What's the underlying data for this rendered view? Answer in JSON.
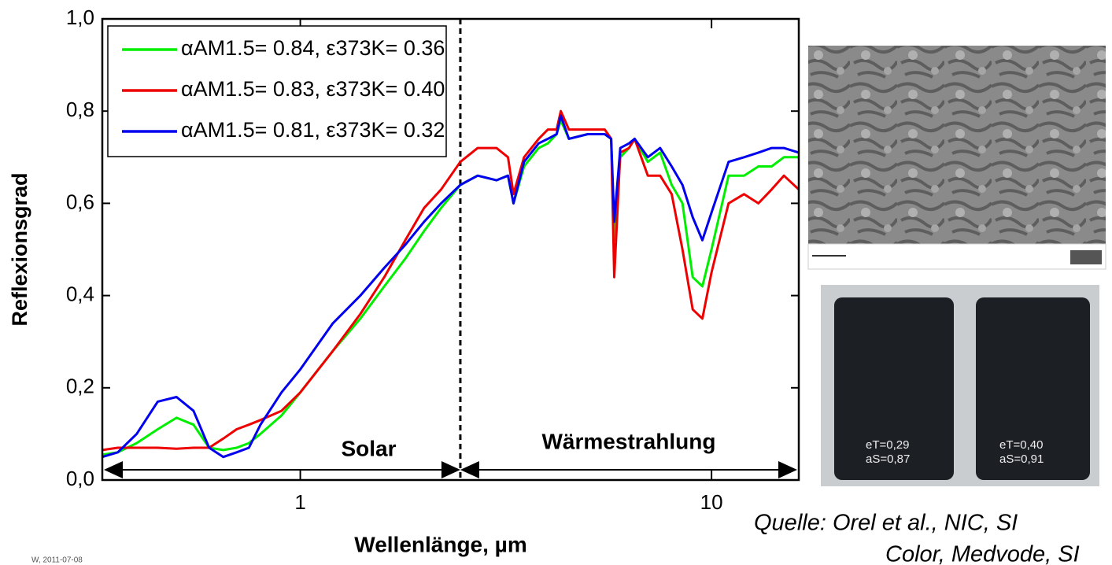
{
  "chart_data": {
    "type": "line",
    "x_label": "Wellenlänge, µm",
    "y_label": "Reflexionsgrad",
    "xscale": "log",
    "xlim": [
      0.33,
      16.3
    ],
    "xticks": [
      1,
      10
    ],
    "ylim": [
      0,
      1
    ],
    "yticks": [
      {
        "value": 0,
        "label": "0,0"
      },
      {
        "value": 0.2,
        "label": "0,2"
      },
      {
        "value": 0.4,
        "label": "0,4"
      },
      {
        "value": 0.6,
        "label": "0,6"
      },
      {
        "value": 0.8,
        "label": "0,8"
      },
      {
        "value": 1,
        "label": "1,0"
      }
    ],
    "legend": "upper left",
    "divider_x": 2.45,
    "regions": [
      "Solar",
      "Wärmestrahlung"
    ],
    "x": [
      0.33,
      0.36,
      0.4,
      0.45,
      0.5,
      0.55,
      0.6,
      0.65,
      0.7,
      0.75,
      0.8,
      0.9,
      1.0,
      1.2,
      1.4,
      1.6,
      1.8,
      2.0,
      2.2,
      2.45,
      2.7,
      3.0,
      3.2,
      3.3,
      3.5,
      3.8,
      4.0,
      4.2,
      4.3,
      4.5,
      5.0,
      5.5,
      5.7,
      5.8,
      6.0,
      6.3,
      6.5,
      7.0,
      7.5,
      8.0,
      8.5,
      9.0,
      9.5,
      10,
      11,
      12,
      13,
      14,
      15,
      16.3
    ],
    "series": [
      {
        "name": "αAM1.5= 0.84, ε373K= 0.36",
        "color": "#00ee00",
        "values": [
          0.055,
          0.06,
          0.08,
          0.11,
          0.135,
          0.12,
          0.07,
          0.065,
          0.07,
          0.08,
          0.1,
          0.14,
          0.19,
          0.28,
          0.35,
          0.42,
          0.48,
          0.54,
          0.59,
          0.64,
          0.66,
          0.65,
          0.66,
          0.6,
          0.68,
          0.72,
          0.73,
          0.75,
          0.78,
          0.74,
          0.75,
          0.75,
          0.74,
          0.52,
          0.7,
          0.72,
          0.74,
          0.69,
          0.71,
          0.64,
          0.6,
          0.44,
          0.42,
          0.5,
          0.66,
          0.66,
          0.68,
          0.68,
          0.7,
          0.7
        ]
      },
      {
        "name": "αAM1.5= 0.83, ε373K= 0.40",
        "color": "#ee0000",
        "values": [
          0.065,
          0.07,
          0.07,
          0.07,
          0.068,
          0.07,
          0.07,
          0.09,
          0.11,
          0.12,
          0.13,
          0.15,
          0.19,
          0.28,
          0.36,
          0.44,
          0.52,
          0.59,
          0.63,
          0.69,
          0.72,
          0.72,
          0.7,
          0.62,
          0.7,
          0.74,
          0.76,
          0.76,
          0.8,
          0.76,
          0.76,
          0.76,
          0.74,
          0.44,
          0.71,
          0.72,
          0.74,
          0.66,
          0.66,
          0.62,
          0.5,
          0.37,
          0.35,
          0.45,
          0.6,
          0.62,
          0.6,
          0.63,
          0.66,
          0.63
        ]
      },
      {
        "name": "αAM1.5= 0.81, ε373K= 0.32",
        "color": "#0000ee",
        "values": [
          0.05,
          0.06,
          0.1,
          0.17,
          0.18,
          0.15,
          0.07,
          0.05,
          0.06,
          0.07,
          0.12,
          0.19,
          0.24,
          0.34,
          0.4,
          0.46,
          0.51,
          0.56,
          0.6,
          0.64,
          0.66,
          0.65,
          0.66,
          0.6,
          0.69,
          0.73,
          0.74,
          0.75,
          0.79,
          0.74,
          0.75,
          0.75,
          0.74,
          0.56,
          0.72,
          0.73,
          0.74,
          0.7,
          0.72,
          0.68,
          0.64,
          0.57,
          0.52,
          0.58,
          0.69,
          0.7,
          0.71,
          0.72,
          0.72,
          0.71
        ]
      }
    ]
  },
  "photo_labels": [
    [
      "eT=0,29",
      "aS=0,87"
    ],
    [
      "eT=0,40",
      "aS=0,91"
    ]
  ],
  "source": [
    "Quelle:  Orel et al., NIC, SI",
    "Color, Medvode, SI"
  ],
  "footer": "W, 2011-07-08"
}
